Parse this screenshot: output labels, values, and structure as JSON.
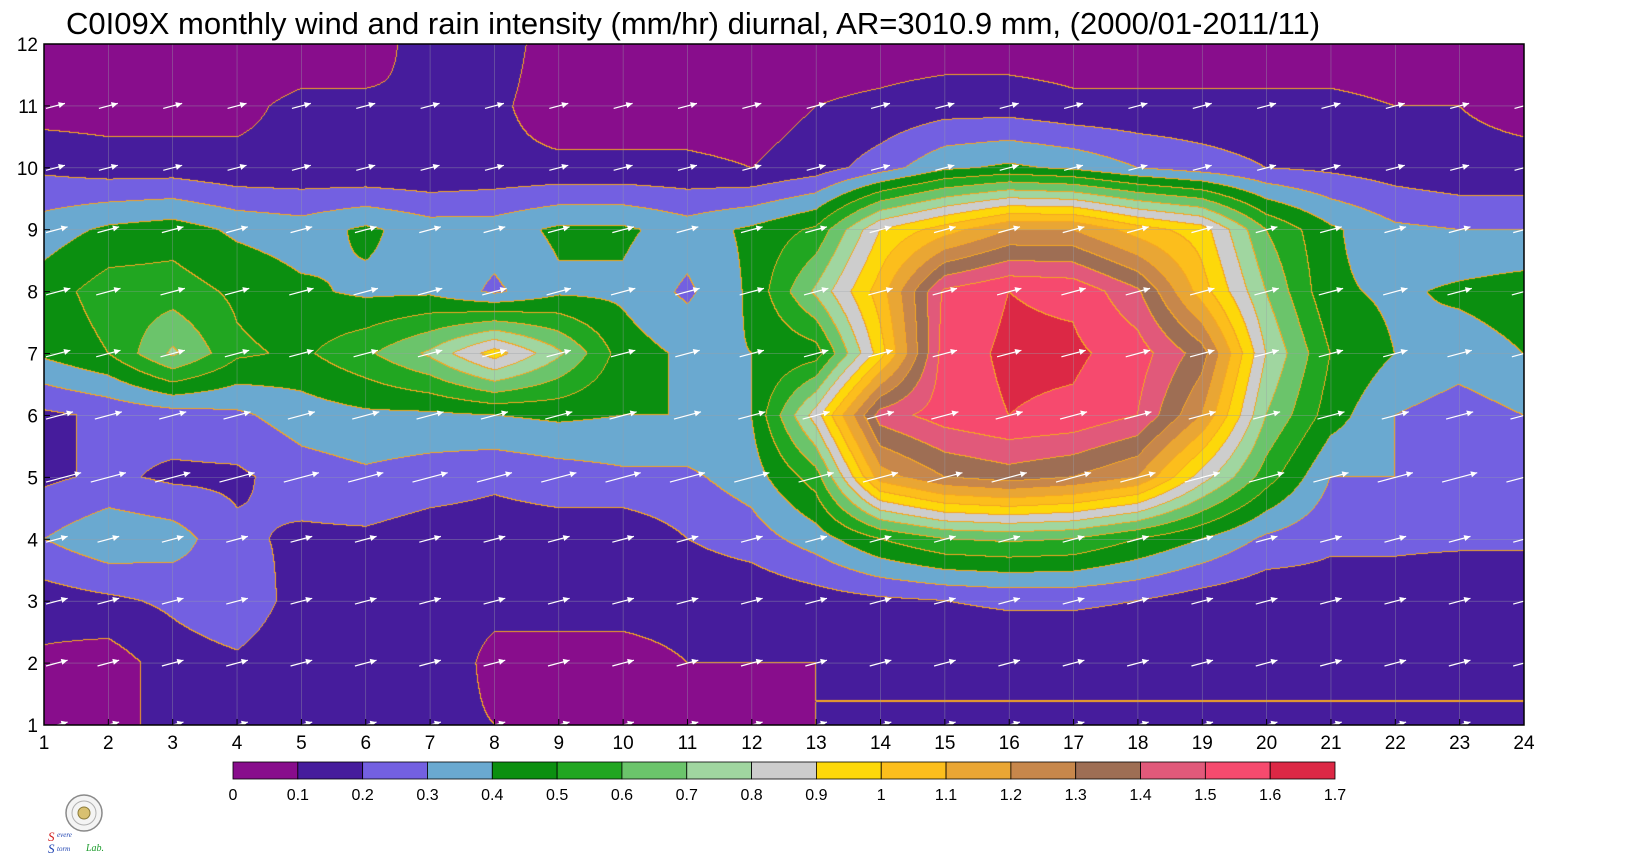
{
  "chart_data": {
    "type": "heatmap",
    "title": "C0I09X monthly wind and rain intensity (mm/hr) diurnal, AR=3010.9 mm, (2000/01-2011/11)",
    "xlabel": "",
    "ylabel": "",
    "x_ticks": [
      "1",
      "2",
      "3",
      "4",
      "5",
      "6",
      "7",
      "8",
      "9",
      "10",
      "11",
      "12",
      "13",
      "14",
      "15",
      "16",
      "17",
      "18",
      "19",
      "20",
      "21",
      "22",
      "23",
      "24"
    ],
    "y_ticks": [
      "1",
      "2",
      "3",
      "4",
      "5",
      "6",
      "7",
      "8",
      "9",
      "10",
      "11",
      "12"
    ],
    "xlim": [
      1,
      24
    ],
    "ylim": [
      1,
      12
    ],
    "x_hours": [
      1,
      2,
      3,
      4,
      5,
      6,
      7,
      8,
      9,
      10,
      11,
      12,
      13,
      14,
      15,
      16,
      17,
      18,
      19,
      20,
      21,
      22,
      23,
      24
    ],
    "y_months": [
      1,
      2,
      3,
      4,
      5,
      6,
      7,
      8,
      9,
      10,
      11,
      12
    ],
    "rain_intensity": [
      [
        0.05,
        0.08,
        0.12,
        0.12,
        0.12,
        0.12,
        0.12,
        0.1,
        0.08,
        0.08,
        0.08,
        0.08,
        0.1,
        0.1,
        0.1,
        0.1,
        0.1,
        0.1,
        0.1,
        0.1,
        0.1,
        0.1,
        0.1,
        0.1
      ],
      [
        0.08,
        0.05,
        0.15,
        0.18,
        0.12,
        0.12,
        0.15,
        0.08,
        0.08,
        0.08,
        0.1,
        0.1,
        0.1,
        0.1,
        0.1,
        0.1,
        0.1,
        0.1,
        0.1,
        0.1,
        0.1,
        0.1,
        0.1,
        0.1
      ],
      [
        0.15,
        0.18,
        0.22,
        0.28,
        0.15,
        0.12,
        0.12,
        0.12,
        0.12,
        0.12,
        0.12,
        0.12,
        0.15,
        0.18,
        0.2,
        0.22,
        0.22,
        0.2,
        0.15,
        0.12,
        0.15,
        0.15,
        0.12,
        0.12
      ],
      [
        0.3,
        0.38,
        0.35,
        0.22,
        0.18,
        0.18,
        0.15,
        0.15,
        0.15,
        0.12,
        0.2,
        0.25,
        0.35,
        0.5,
        0.6,
        0.62,
        0.6,
        0.5,
        0.4,
        0.28,
        0.22,
        0.22,
        0.22,
        0.22
      ],
      [
        0.18,
        0.22,
        0.18,
        0.18,
        0.25,
        0.28,
        0.25,
        0.22,
        0.25,
        0.28,
        0.28,
        0.35,
        0.55,
        1.15,
        1.3,
        1.35,
        1.3,
        1.2,
        0.85,
        0.55,
        0.3,
        0.3,
        0.2,
        0.22
      ],
      [
        0.18,
        0.22,
        0.25,
        0.28,
        0.35,
        0.38,
        0.38,
        0.4,
        0.42,
        0.4,
        0.4,
        0.4,
        0.85,
        1.45,
        1.55,
        1.6,
        1.58,
        1.5,
        1.2,
        0.7,
        0.45,
        0.3,
        0.25,
        0.3
      ],
      [
        0.42,
        0.5,
        0.72,
        0.52,
        0.48,
        0.58,
        0.72,
        0.95,
        0.72,
        0.45,
        0.38,
        0.4,
        0.45,
        0.95,
        1.55,
        1.62,
        1.62,
        1.55,
        1.35,
        0.8,
        0.5,
        0.4,
        0.35,
        0.4
      ],
      [
        0.45,
        0.55,
        0.55,
        0.48,
        0.42,
        0.38,
        0.38,
        0.28,
        0.38,
        0.38,
        0.28,
        0.42,
        0.72,
        1.05,
        1.52,
        1.6,
        1.58,
        1.42,
        1.05,
        0.7,
        0.42,
        0.38,
        0.42,
        0.45
      ],
      [
        0.35,
        0.42,
        0.45,
        0.38,
        0.35,
        0.42,
        0.35,
        0.35,
        0.42,
        0.42,
        0.35,
        0.42,
        0.52,
        0.9,
        1.05,
        1.2,
        1.2,
        1.05,
        0.95,
        0.6,
        0.42,
        0.32,
        0.3,
        0.3
      ],
      [
        0.18,
        0.15,
        0.15,
        0.12,
        0.12,
        0.1,
        0.1,
        0.12,
        0.12,
        0.12,
        0.12,
        0.1,
        0.15,
        0.25,
        0.38,
        0.42,
        0.38,
        0.3,
        0.25,
        0.2,
        0.18,
        0.15,
        0.12,
        0.12
      ],
      [
        0.05,
        0.05,
        0.05,
        0.08,
        0.12,
        0.12,
        0.1,
        0.12,
        0.05,
        0.05,
        0.05,
        0.05,
        0.1,
        0.12,
        0.15,
        0.15,
        0.12,
        0.12,
        0.12,
        0.12,
        0.12,
        0.1,
        0.1,
        0.08
      ],
      [
        0.05,
        0.05,
        0.05,
        0.05,
        0.05,
        0.05,
        0.15,
        0.15,
        0.05,
        0.05,
        0.05,
        0.05,
        0.05,
        0.05,
        0.05,
        0.05,
        0.05,
        0.05,
        0.05,
        0.05,
        0.05,
        0.05,
        0.05,
        0.05
      ]
    ],
    "wind_direction_deg": 15,
    "wind_strength_rows": [
      0.8,
      0.8,
      0.8,
      0.8,
      1.3,
      1.0,
      0.9,
      0.9,
      0.8,
      0.7,
      0.7,
      0.0
    ],
    "colorbar": {
      "levels": [
        "0",
        "0.1",
        "0.2",
        "0.3",
        "0.4",
        "0.5",
        "0.6",
        "0.7",
        "0.8",
        "0.9",
        "1",
        "1.1",
        "1.2",
        "1.3",
        "1.4",
        "1.5",
        "1.6",
        "1.7"
      ],
      "colors": [
        "#880d8c",
        "#461c9c",
        "#7360e1",
        "#6aa9d0",
        "#0b8f10",
        "#21a621",
        "#6bc46b",
        "#a0d6a0",
        "#cdcdcd",
        "#fdd80a",
        "#fcbe1c",
        "#e9a634",
        "#c7874b",
        "#9e6e54",
        "#e1597a",
        "#f64a6e",
        "#dc2845"
      ]
    },
    "contour_line_color": "#f5a623",
    "wind_arrow_color": "#ffffff",
    "grid": true
  },
  "logo": {
    "line1_letters": [
      "S",
      "evere"
    ],
    "line2_letters": [
      "S",
      "torm"
    ],
    "lab_text": "Lab."
  }
}
